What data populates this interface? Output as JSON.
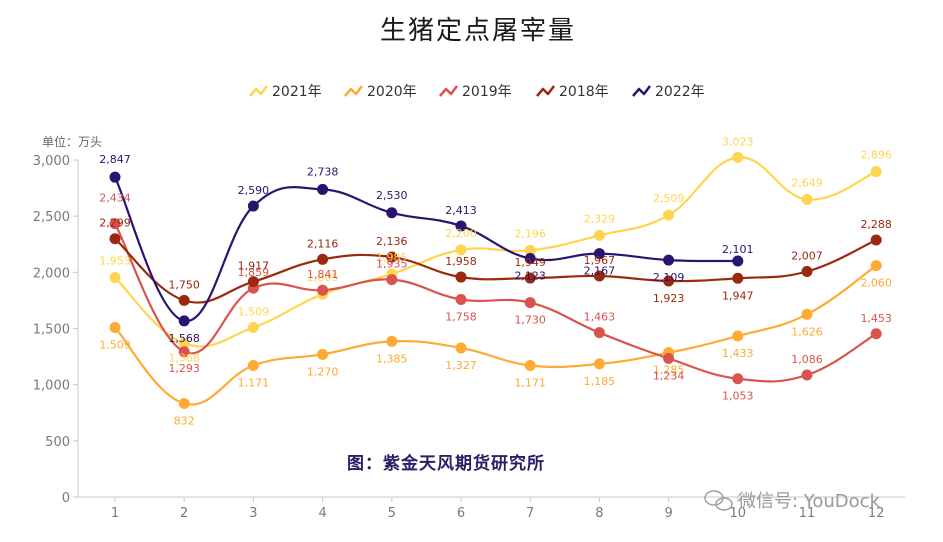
{
  "chart_data": {
    "type": "line",
    "title": "生猪定点屠宰量",
    "unit_label": "单位：万头",
    "source_text": "图：紫金天风期货研究所",
    "watermark": "微信号: YouDock",
    "categories": [
      "1",
      "2",
      "3",
      "4",
      "5",
      "6",
      "7",
      "8",
      "9",
      "10",
      "11",
      "12"
    ],
    "ylim": [
      0,
      3000
    ],
    "yticks": [
      "0",
      "500",
      "1,000",
      "1,500",
      "2,000",
      "2,500",
      "3,000"
    ],
    "ytick_values": [
      0,
      500,
      1000,
      1500,
      2000,
      2500,
      3000
    ],
    "grid": false,
    "legend_position": "top",
    "series": [
      {
        "name": "2021年",
        "color": "#FFD54F",
        "values": [
          1953,
          1368,
          1509,
          1805,
          1985,
          2200,
          2196,
          2329,
          2509,
          3023,
          2649,
          2896
        ]
      },
      {
        "name": "2020年",
        "color": "#FFAA33",
        "values": [
          1509,
          832,
          1171,
          1270,
          1385,
          1327,
          1171,
          1185,
          1285,
          1433,
          1626,
          2060
        ]
      },
      {
        "name": "2019年",
        "color": "#D9534F",
        "values": [
          2434,
          1293,
          1859,
          1841,
          1935,
          1758,
          1730,
          1463,
          1234,
          1053,
          1086,
          1453
        ]
      },
      {
        "name": "2018年",
        "color": "#99290F",
        "values": [
          2299,
          1750,
          1917,
          2116,
          2136,
          1958,
          1949,
          1967,
          1923,
          1947,
          2007,
          2288
        ]
      },
      {
        "name": "2022年",
        "color": "#2A1470",
        "values": [
          2847,
          1568,
          2590,
          2738,
          2530,
          2413,
          2123,
          2167,
          2109,
          2101,
          null,
          null
        ]
      }
    ],
    "data_labels": {
      "2021年": [
        "1,953",
        "1,368",
        "1,509",
        "1,805",
        "1,985",
        "2,200",
        "2,196",
        "2,329",
        "2,509",
        "3,023",
        "2,649",
        "2,896"
      ],
      "2020年": [
        "1,509",
        "832",
        "1,171",
        "1,270",
        "1,385",
        "1,327",
        "1,171",
        "1,185",
        "1,285",
        "1,433",
        "1,626",
        "2,060"
      ],
      "2019年": [
        "2,434",
        "1,293",
        "1,859",
        "1,841",
        "1,935",
        "1,758",
        "1,730",
        "1,463",
        "1,234",
        "1,053",
        "1,086",
        "1,453"
      ],
      "2018年": [
        "2,299",
        "1,750",
        "1,917",
        "2,116",
        "2,136",
        "1,958",
        "1,949",
        "1,967",
        "1,923",
        "1,947",
        "2,007",
        "2,288"
      ],
      "2022年": [
        "2,847",
        "1,568",
        "2,590",
        "2,738",
        "2,530",
        "2,413",
        "2,123",
        "2,167",
        "2,109",
        "2,101",
        "",
        ""
      ]
    }
  }
}
